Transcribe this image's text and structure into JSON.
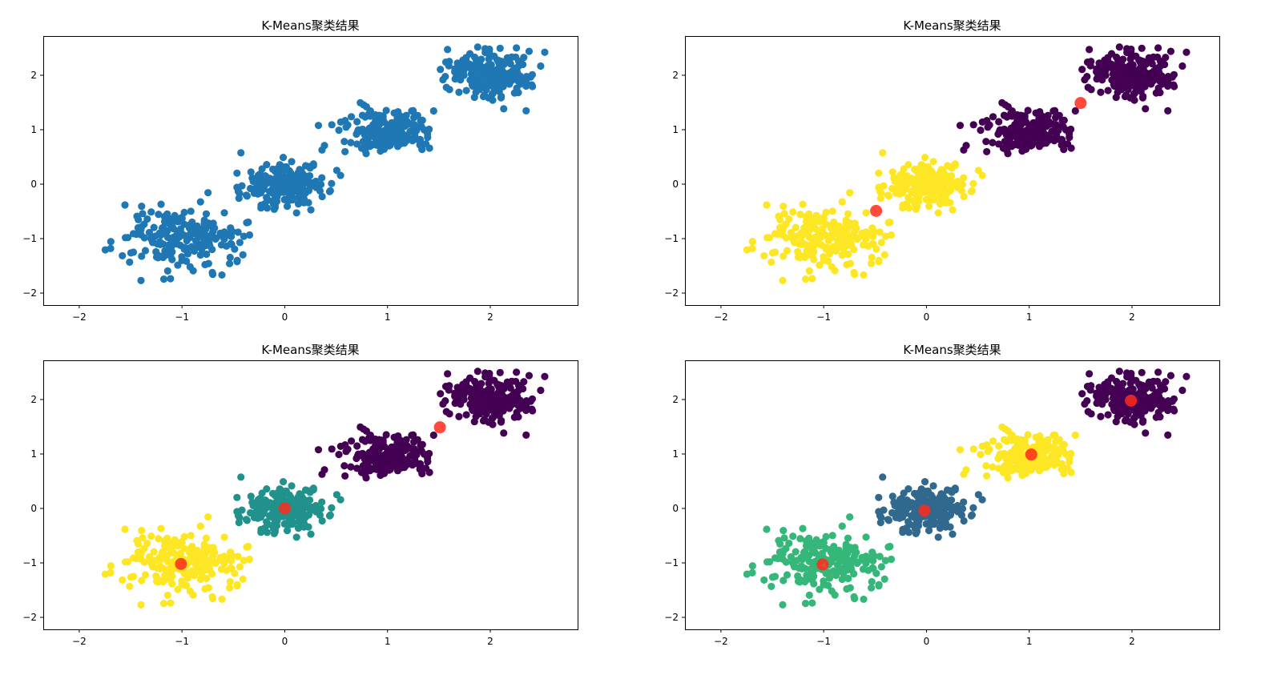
{
  "chart_data": [
    {
      "type": "scatter",
      "title": "K-Means聚类结果",
      "xlabel": "",
      "ylabel": "",
      "xlim": [
        -2.35,
        2.85
      ],
      "ylim": [
        -2.22,
        2.72
      ],
      "xticks": [
        -2,
        -1,
        0,
        1,
        2
      ],
      "yticks": [
        -2,
        -1,
        0,
        1,
        2
      ],
      "grid": false,
      "legend": "none",
      "point_color": "#1f77b4",
      "clusters": [
        {
          "center": [
            -1.0,
            -1.0
          ],
          "spread": 0.3,
          "n": 200,
          "color": "#1f77b4"
        },
        {
          "center": [
            0.0,
            0.0
          ],
          "spread": 0.2,
          "n": 200,
          "color": "#1f77b4"
        },
        {
          "center": [
            1.0,
            1.0
          ],
          "spread": 0.2,
          "n": 200,
          "color": "#1f77b4"
        },
        {
          "center": [
            2.0,
            2.0
          ],
          "spread": 0.2,
          "n": 200,
          "color": "#1f77b4"
        }
      ],
      "centroids": []
    },
    {
      "type": "scatter",
      "title": "K-Means聚类结果",
      "xlabel": "",
      "ylabel": "",
      "xlim": [
        -2.35,
        2.85
      ],
      "ylim": [
        -2.22,
        2.72
      ],
      "xticks": [
        -2,
        -1,
        0,
        1,
        2
      ],
      "yticks": [
        -2,
        -1,
        0,
        1,
        2
      ],
      "grid": false,
      "legend": "none",
      "k": 2,
      "clusters": [
        {
          "center": [
            -1.0,
            -1.0
          ],
          "spread": 0.3,
          "n": 200,
          "color": "#fde725"
        },
        {
          "center": [
            0.0,
            0.0
          ],
          "spread": 0.2,
          "n": 200,
          "color": "#fde725"
        },
        {
          "center": [
            1.0,
            1.0
          ],
          "spread": 0.2,
          "n": 200,
          "color": "#440154"
        },
        {
          "center": [
            2.0,
            2.0
          ],
          "spread": 0.2,
          "n": 200,
          "color": "#440154"
        }
      ],
      "centroids": [
        {
          "x": -0.49,
          "y": -0.49
        },
        {
          "x": 1.5,
          "y": 1.49
        }
      ],
      "centroid_color": "#ff2a1a"
    },
    {
      "type": "scatter",
      "title": "K-Means聚类结果",
      "xlabel": "",
      "ylabel": "",
      "xlim": [
        -2.35,
        2.85
      ],
      "ylim": [
        -2.22,
        2.72
      ],
      "xticks": [
        -2,
        -1,
        0,
        1,
        2
      ],
      "yticks": [
        -2,
        -1,
        0,
        1,
        2
      ],
      "grid": false,
      "legend": "none",
      "k": 3,
      "clusters": [
        {
          "center": [
            -1.0,
            -1.0
          ],
          "spread": 0.3,
          "n": 200,
          "color": "#fde725"
        },
        {
          "center": [
            0.0,
            0.0
          ],
          "spread": 0.2,
          "n": 200,
          "color": "#21918c"
        },
        {
          "center": [
            1.0,
            1.0
          ],
          "spread": 0.2,
          "n": 200,
          "color": "#440154"
        },
        {
          "center": [
            2.0,
            2.0
          ],
          "spread": 0.2,
          "n": 200,
          "color": "#440154"
        }
      ],
      "centroids": [
        {
          "x": -1.01,
          "y": -1.02
        },
        {
          "x": 0.0,
          "y": 0.0
        },
        {
          "x": 1.51,
          "y": 1.49
        }
      ],
      "centroid_color": "#ff2a1a"
    },
    {
      "type": "scatter",
      "title": "K-Means聚类结果",
      "xlabel": "",
      "ylabel": "",
      "xlim": [
        -2.35,
        2.85
      ],
      "ylim": [
        -2.22,
        2.72
      ],
      "xticks": [
        -2,
        -1,
        0,
        1,
        2
      ],
      "yticks": [
        -2,
        -1,
        0,
        1,
        2
      ],
      "grid": false,
      "legend": "none",
      "k": 4,
      "clusters": [
        {
          "center": [
            -1.0,
            -1.0
          ],
          "spread": 0.3,
          "n": 200,
          "color": "#35b779"
        },
        {
          "center": [
            0.0,
            0.0
          ],
          "spread": 0.2,
          "n": 200,
          "color": "#31688e"
        },
        {
          "center": [
            1.0,
            1.0
          ],
          "spread": 0.2,
          "n": 200,
          "color": "#fde725"
        },
        {
          "center": [
            2.0,
            2.0
          ],
          "spread": 0.2,
          "n": 200,
          "color": "#440154"
        }
      ],
      "centroids": [
        {
          "x": -1.01,
          "y": -1.03
        },
        {
          "x": -0.02,
          "y": -0.04
        },
        {
          "x": 1.02,
          "y": 0.99
        },
        {
          "x": 1.99,
          "y": 1.98
        }
      ],
      "centroid_color": "#ff2a1a"
    }
  ]
}
